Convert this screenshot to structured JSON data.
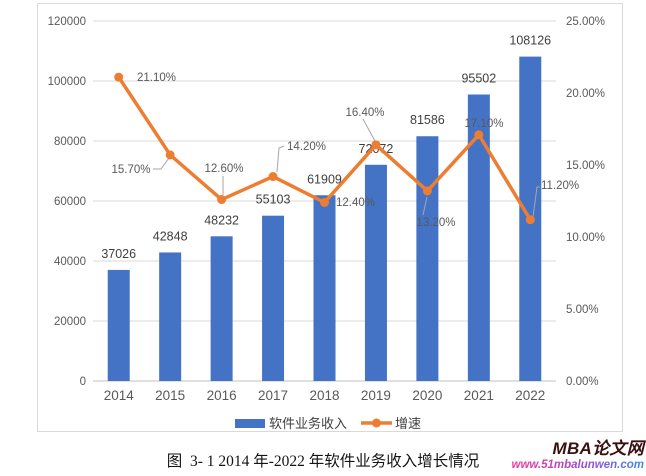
{
  "chart_data": {
    "type": "combo",
    "title": "",
    "categories": [
      "2014",
      "2015",
      "2016",
      "2017",
      "2018",
      "2019",
      "2020",
      "2021",
      "2022"
    ],
    "series": [
      {
        "name": "软件业务收入",
        "chart": "bar",
        "axis": "primary",
        "values": [
          37026,
          42848,
          48232,
          55103,
          61909,
          72072,
          81586,
          95502,
          108126
        ],
        "data_labels": [
          "37026",
          "42848",
          "48232",
          "55103",
          "61909",
          "72072",
          "81586",
          "95502",
          "108126"
        ]
      },
      {
        "name": "增速",
        "chart": "line",
        "axis": "secondary",
        "values": [
          21.1,
          15.7,
          12.6,
          14.2,
          12.4,
          16.4,
          13.2,
          17.1,
          11.2
        ],
        "data_labels": [
          "21.10%",
          "15.70%",
          "12.60%",
          "14.20%",
          "12.40%",
          "16.40%",
          "13.20%",
          "17.10%",
          "11.20%"
        ]
      }
    ],
    "primary_axis": {
      "min": 0,
      "max": 120000,
      "step": 20000,
      "tick_labels": [
        "0",
        "20000",
        "40000",
        "60000",
        "80000",
        "100000",
        "120000"
      ]
    },
    "secondary_axis": {
      "min": 0,
      "max": 25,
      "step": 5,
      "tick_labels": [
        "0.00%",
        "5.00%",
        "10.00%",
        "15.00%",
        "20.00%",
        "25.00%"
      ]
    },
    "grid": true,
    "legend_position": "bottom"
  },
  "caption": "图  3- 1 2014 年-2022 年软件业务收入增长情况",
  "watermark": {
    "title": "MBA论文网",
    "url": "www.51mbalunwen.com"
  },
  "colors": {
    "bar": "#4472C4",
    "line": "#ED7D31",
    "gridline": "#D9D9D9",
    "axis_line": "#C0C0C0",
    "axis_text": "#595959",
    "label_text": "#404040",
    "leader": "#A6A6A6",
    "frame_border": "#D9D9D9",
    "watermark_title": "#3A0F12",
    "watermark_url_start": "#F03A9C",
    "watermark_url_end": "#3B8EDE"
  }
}
